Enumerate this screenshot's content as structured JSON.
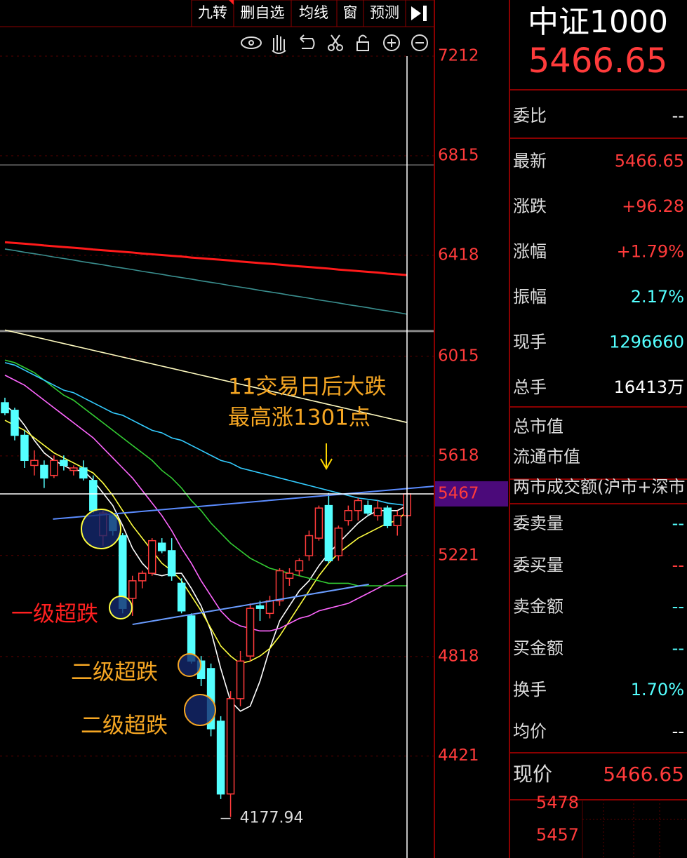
{
  "toolbar": [
    "九转",
    "删自选",
    "均线",
    "窗",
    "预测"
  ],
  "chart_data": {
    "type": "candlestick",
    "candles": [
      {
        "open": 5830,
        "high": 5850,
        "low": 5780,
        "close": 5790
      },
      {
        "open": 5800,
        "high": 5810,
        "low": 5680,
        "close": 5700
      },
      {
        "open": 5700,
        "high": 5720,
        "low": 5570,
        "close": 5600
      },
      {
        "open": 5580,
        "high": 5640,
        "low": 5540,
        "close": 5600
      },
      {
        "open": 5580,
        "high": 5600,
        "low": 5490,
        "close": 5530
      },
      {
        "open": 5540,
        "high": 5620,
        "low": 5530,
        "close": 5600
      },
      {
        "open": 5600,
        "high": 5620,
        "low": 5560,
        "close": 5580
      },
      {
        "open": 5560,
        "high": 5580,
        "low": 5540,
        "close": 5570
      },
      {
        "open": 5570,
        "high": 5600,
        "low": 5520,
        "close": 5530
      },
      {
        "open": 5520,
        "high": 5540,
        "low": 5390,
        "close": 5400
      },
      {
        "open": 5300,
        "high": 5400,
        "low": 5260,
        "close": 5390
      },
      {
        "open": 5380,
        "high": 5390,
        "low": 5300,
        "close": 5320
      },
      {
        "open": 5300,
        "high": 5310,
        "low": 4990,
        "close": 5010
      },
      {
        "open": 5050,
        "high": 5140,
        "low": 4980,
        "close": 5120
      },
      {
        "open": 5120,
        "high": 5160,
        "low": 5090,
        "close": 5150
      },
      {
        "open": 5150,
        "high": 5290,
        "low": 5140,
        "close": 5280
      },
      {
        "open": 5270,
        "high": 5290,
        "low": 5230,
        "close": 5240
      },
      {
        "open": 5240,
        "high": 5290,
        "low": 5120,
        "close": 5140
      },
      {
        "open": 5110,
        "high": 5130,
        "low": 4990,
        "close": 5000
      },
      {
        "open": 4980,
        "high": 4990,
        "low": 4790,
        "close": 4800
      },
      {
        "open": 4800,
        "high": 4820,
        "low": 4700,
        "close": 4730
      },
      {
        "open": 4770,
        "high": 4790,
        "low": 4500,
        "close": 4530
      },
      {
        "open": 4560,
        "high": 4580,
        "low": 4250,
        "close": 4270
      },
      {
        "open": 4270,
        "high": 4680,
        "low": 4177.94,
        "close": 4650
      },
      {
        "open": 4650,
        "high": 4840,
        "low": 4620,
        "close": 4800
      },
      {
        "open": 4820,
        "high": 5030,
        "low": 4800,
        "close": 5010
      },
      {
        "open": 5020,
        "high": 5040,
        "low": 4960,
        "close": 5010
      },
      {
        "open": 4990,
        "high": 5060,
        "low": 4970,
        "close": 5040
      },
      {
        "open": 5040,
        "high": 5170,
        "low": 5020,
        "close": 5160
      },
      {
        "open": 5130,
        "high": 5170,
        "low": 5100,
        "close": 5150
      },
      {
        "open": 5160,
        "high": 5210,
        "low": 5140,
        "close": 5200
      },
      {
        "open": 5220,
        "high": 5320,
        "low": 5200,
        "close": 5300
      },
      {
        "open": 5290,
        "high": 5420,
        "low": 5280,
        "close": 5410
      },
      {
        "open": 5420,
        "high": 5470,
        "low": 5190,
        "close": 5200
      },
      {
        "open": 5220,
        "high": 5340,
        "low": 5200,
        "close": 5330
      },
      {
        "open": 5360,
        "high": 5420,
        "low": 5340,
        "close": 5400
      },
      {
        "open": 5400,
        "high": 5450,
        "low": 5360,
        "close": 5440
      },
      {
        "open": 5420,
        "high": 5440,
        "low": 5380,
        "close": 5390
      },
      {
        "open": 5380,
        "high": 5440,
        "low": 5360,
        "close": 5410
      },
      {
        "open": 5410,
        "high": 5420,
        "low": 5330,
        "close": 5340
      },
      {
        "open": 5340,
        "high": 5400,
        "low": 5300,
        "close": 5380
      },
      {
        "open": 5380,
        "high": 5470,
        "low": 5370,
        "close": 5466.65
      }
    ],
    "up_color": "#ff3b3b",
    "down_color": "#54ffff",
    "xlim": [
      -0.5,
      43.7
    ],
    "ylim": [
      4023,
      7324
    ],
    "yticks": [
      7212,
      6815,
      6418,
      6015,
      5618,
      5221,
      4818,
      4421
    ],
    "grid": true,
    "series": [
      {
        "color": "#ffffff",
        "values": [
          5820,
          5790,
          5740,
          5680,
          5630,
          5600,
          5580,
          5560,
          5560,
          5520,
          5470,
          5420,
          5340,
          5250,
          5190,
          5150,
          5140,
          5150,
          5150,
          5090,
          5020,
          4920,
          4770,
          4640,
          4600,
          4620,
          4720,
          4850,
          4960,
          5020,
          5080,
          5120,
          5180,
          5230,
          5270,
          5310,
          5350,
          5380,
          5400,
          5400,
          5400,
          5420
        ]
      },
      {
        "color": "#ffff40",
        "values": [
          5760,
          5740,
          5720,
          5690,
          5660,
          5630,
          5610,
          5590,
          5570,
          5550,
          5510,
          5460,
          5400,
          5340,
          5290,
          5240,
          5190,
          5160,
          5120,
          5060,
          5000,
          4930,
          4860,
          4820,
          4790,
          4800,
          4820,
          4850,
          4900,
          4960,
          5020,
          5080,
          5140,
          5190,
          5230,
          5260,
          5290,
          5310,
          5330,
          5350,
          5360,
          5400
        ]
      },
      {
        "color": "#ff66ff",
        "values": [
          5940,
          5920,
          5900,
          5870,
          5840,
          5810,
          5780,
          5750,
          5720,
          5690,
          5650,
          5610,
          5570,
          5530,
          5480,
          5430,
          5380,
          5320,
          5250,
          5190,
          5120,
          5060,
          5000,
          4960,
          4940,
          4930,
          4920,
          4920,
          4930,
          4950,
          4970,
          4980,
          5000,
          5010,
          5020,
          5030,
          5050,
          5070,
          5090,
          5110,
          5130,
          5150
        ]
      },
      {
        "color": "#33cc33",
        "values": [
          6000,
          5990,
          5970,
          5950,
          5920,
          5890,
          5860,
          5840,
          5810,
          5780,
          5750,
          5720,
          5690,
          5660,
          5630,
          5600,
          5560,
          5530,
          5490,
          5440,
          5400,
          5350,
          5310,
          5270,
          5240,
          5210,
          5190,
          5170,
          5160,
          5150,
          5140,
          5130,
          5120,
          5110,
          5110,
          5110,
          5100,
          5100,
          5100,
          5100,
          5100,
          5100
        ]
      },
      {
        "color": "#33ccff",
        "values": [
          5990,
          5980,
          5960,
          5940,
          5920,
          5900,
          5880,
          5870,
          5850,
          5830,
          5810,
          5790,
          5780,
          5760,
          5740,
          5720,
          5710,
          5690,
          5680,
          5660,
          5640,
          5620,
          5600,
          5590,
          5570,
          5560,
          5550,
          5540,
          5530,
          5520,
          5510,
          5500,
          5490,
          5480,
          5470,
          5460,
          5450,
          5445,
          5440,
          5430,
          5425,
          5420
        ]
      },
      {
        "color": "#fffbc0",
        "values": [
          6120,
          6111,
          6102,
          6093,
          6084,
          6075,
          6066,
          6057,
          6048,
          6039,
          6030,
          6021,
          6012,
          6003,
          5994,
          5985,
          5976,
          5967,
          5958,
          5949,
          5940,
          5931,
          5922,
          5913,
          5904,
          5895,
          5886,
          5877,
          5868,
          5859,
          5850,
          5841,
          5832,
          5823,
          5814,
          5805,
          5796,
          5787,
          5778,
          5769,
          5760,
          5751
        ]
      },
      {
        "color": "#3a8f8f",
        "values": [
          6443,
          6437,
          6430,
          6424,
          6418,
          6411,
          6405,
          6399,
          6392,
          6386,
          6380,
          6373,
          6367,
          6361,
          6354,
          6348,
          6342,
          6335,
          6329,
          6323,
          6316,
          6310,
          6304,
          6297,
          6291,
          6285,
          6278,
          6272,
          6266,
          6259,
          6253,
          6247,
          6240,
          6234,
          6228,
          6221,
          6215,
          6209,
          6202,
          6196,
          6190,
          6183
        ]
      },
      {
        "color": "#ff1a1a",
        "values": [
          6470,
          6467,
          6464,
          6461,
          6457,
          6454,
          6451,
          6448,
          6445,
          6441,
          6438,
          6435,
          6432,
          6429,
          6425,
          6422,
          6419,
          6416,
          6413,
          6409,
          6406,
          6403,
          6400,
          6397,
          6393,
          6390,
          6387,
          6384,
          6381,
          6377,
          6374,
          6371,
          6368,
          6365,
          6361,
          6358,
          6355,
          6352,
          6349,
          6345,
          6342,
          6339
        ]
      }
    ],
    "hlines": [
      {
        "value": 6778,
        "color": "#6a6a6a"
      },
      {
        "value": 6116,
        "color": "#8a8a8a"
      }
    ],
    "trendlines": [
      {
        "x": [
          4.9,
          43.7
        ],
        "y": [
          5366,
          5497
        ],
        "color": "#5b8cff"
      },
      {
        "x": [
          13,
          37.1
        ],
        "y": [
          4946,
          5106
        ],
        "color": "#6a9cff"
      }
    ],
    "current_price": {
      "value": 5466.65,
      "label": "5467"
    },
    "annotations": [
      "11交易日后大跌",
      "最高涨1301点",
      "一级超跌",
      "二级超跌",
      "二级超跌"
    ]
  },
  "panel": {
    "title": "中证1000",
    "price": 5466.65,
    "rows": [
      {
        "label": "委比",
        "value": "--",
        "color": "#ffffff"
      },
      {
        "label": "最新",
        "value": "5466.65",
        "color": "#ff3b3b"
      },
      {
        "label": "涨跌",
        "value": "+96.28",
        "color": "#ff3b3b"
      },
      {
        "label": "涨幅",
        "value": "+1.79%",
        "color": "#ff3b3b"
      },
      {
        "label": "振幅",
        "value": "2.17%",
        "color": "#54ffff"
      },
      {
        "label": "现手",
        "value": "1296660",
        "color": "#54ffff"
      },
      {
        "label": "总手",
        "value": "16413万",
        "color": "#ffffff"
      }
    ],
    "rows2": [
      "总市值",
      "流通市值",
      "两市成交额(沪市+深市"
    ],
    "rows3": [
      {
        "label": "委卖量",
        "value": "--",
        "color": "#54ffff"
      },
      {
        "label": "委买量",
        "value": "--",
        "color": "#ff3b3b"
      },
      {
        "label": "卖金额",
        "value": "--",
        "color": "#54ffff"
      },
      {
        "label": "买金额",
        "value": "--",
        "color": "#54ffff"
      },
      {
        "label": "换手",
        "value": "1.70%",
        "color": "#54ffff"
      },
      {
        "label": "均价",
        "value": "--",
        "color": "#ffffff"
      }
    ],
    "now": {
      "label": "现价",
      "value": "5466.65"
    },
    "book": [
      "5478",
      "5457"
    ]
  }
}
